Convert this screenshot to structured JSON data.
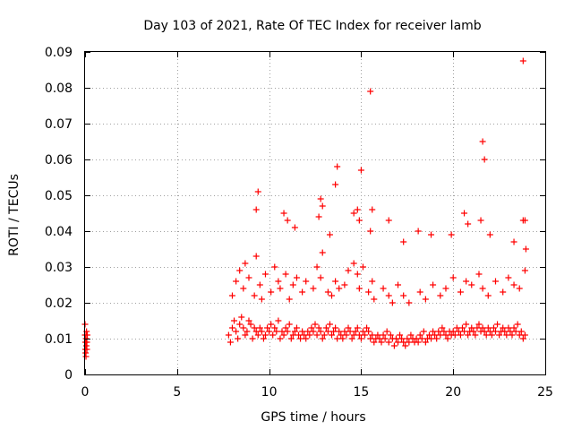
{
  "chart_data": {
    "type": "scatter",
    "title": "Day 103 of 2021, Rate Of TEC Index for receiver lamb",
    "xlabel": "GPS time / hours",
    "ylabel": "ROTI / TECUs",
    "xlim": [
      0,
      25
    ],
    "ylim": [
      0,
      0.09
    ],
    "x_ticks": [
      0,
      5,
      10,
      15,
      20,
      25
    ],
    "x_tick_labels": [
      "0",
      "5",
      "10",
      "15",
      "20",
      "25"
    ],
    "y_ticks": [
      0,
      0.01,
      0.02,
      0.03,
      0.04,
      0.05,
      0.06,
      0.07,
      0.08,
      0.09
    ],
    "y_tick_labels": [
      "0",
      "0.01",
      "0.02",
      "0.03",
      "0.04",
      "0.05",
      "0.06",
      "0.07",
      "0.08",
      "0.09"
    ],
    "grid": true,
    "marker": "+",
    "series": [
      {
        "name": "ROTI",
        "color": "#ff0000",
        "x": [
          0.0,
          0.0,
          0.02,
          0.02,
          0.03,
          0.05,
          0.05,
          0.07,
          0.08,
          0.1,
          0.1,
          0.12,
          7.8,
          7.9,
          8.0,
          8.1,
          8.2,
          8.3,
          8.4,
          8.5,
          8.6,
          8.7,
          8.8,
          8.9,
          9.0,
          9.1,
          9.2,
          9.3,
          9.4,
          9.5,
          9.6,
          9.7,
          9.8,
          9.9,
          10.0,
          10.1,
          10.2,
          10.3,
          10.4,
          10.5,
          10.6,
          10.7,
          10.8,
          10.9,
          11.0,
          11.1,
          11.2,
          11.3,
          11.4,
          11.5,
          11.6,
          11.7,
          11.8,
          11.9,
          12.0,
          12.1,
          12.2,
          12.3,
          12.4,
          12.5,
          12.6,
          12.7,
          12.8,
          12.9,
          13.0,
          13.1,
          13.2,
          13.3,
          13.4,
          13.5,
          13.6,
          13.7,
          13.8,
          13.9,
          14.0,
          14.1,
          14.2,
          14.3,
          14.4,
          14.5,
          14.6,
          14.7,
          14.8,
          14.9,
          15.0,
          15.1,
          15.2,
          15.3,
          15.4,
          15.5,
          15.6,
          15.7,
          15.8,
          15.9,
          16.0,
          16.1,
          16.2,
          16.3,
          16.4,
          16.5,
          16.6,
          16.7,
          16.8,
          16.9,
          17.0,
          17.1,
          17.2,
          17.3,
          17.4,
          17.5,
          17.6,
          17.7,
          17.8,
          17.9,
          18.0,
          18.1,
          18.2,
          18.3,
          18.4,
          18.5,
          18.6,
          18.7,
          18.8,
          18.9,
          19.0,
          19.1,
          19.2,
          19.3,
          19.4,
          19.5,
          19.6,
          19.7,
          19.8,
          19.9,
          20.0,
          20.1,
          20.2,
          20.3,
          20.4,
          20.5,
          20.6,
          20.7,
          20.8,
          20.9,
          21.0,
          21.1,
          21.2,
          21.3,
          21.4,
          21.5,
          21.6,
          21.7,
          21.8,
          21.9,
          22.0,
          22.1,
          22.2,
          22.3,
          22.4,
          22.5,
          22.6,
          22.7,
          22.8,
          22.9,
          23.0,
          23.1,
          23.2,
          23.3,
          23.4,
          23.5,
          23.6,
          23.7,
          23.8,
          23.9,
          8.0,
          8.2,
          8.4,
          8.6,
          8.7,
          8.9,
          9.2,
          9.3,
          9.5,
          9.6,
          9.8,
          10.1,
          10.3,
          10.5,
          10.6,
          10.9,
          11.1,
          11.3,
          11.5,
          11.8,
          12.0,
          12.4,
          12.6,
          12.8,
          12.9,
          13.2,
          13.4,
          13.6,
          13.8,
          14.1,
          14.3,
          14.6,
          14.8,
          14.9,
          15.1,
          15.4,
          15.6,
          15.7,
          16.2,
          16.5,
          16.7,
          17.0,
          17.3,
          17.6,
          18.2,
          18.5,
          18.9,
          19.3,
          19.6,
          20.0,
          20.4,
          20.7,
          21.0,
          21.4,
          21.6,
          21.9,
          22.3,
          22.7,
          23.0,
          23.3,
          23.6,
          23.9,
          9.3,
          9.4,
          10.8,
          11.0,
          11.4,
          12.7,
          12.8,
          12.9,
          13.3,
          13.6,
          13.7,
          14.6,
          14.8,
          14.9,
          15.0,
          15.5,
          15.6,
          16.5,
          17.3,
          18.1,
          18.8,
          19.9,
          20.6,
          20.8,
          21.5,
          21.6,
          21.7,
          22.0,
          23.3,
          23.8,
          23.9,
          23.95,
          15.5,
          23.8
        ],
        "y": [
          0.014,
          0.011,
          0.009,
          0.007,
          0.006,
          0.005,
          0.01,
          0.008,
          0.012,
          0.007,
          0.009,
          0.011,
          0.011,
          0.009,
          0.013,
          0.015,
          0.012,
          0.01,
          0.014,
          0.016,
          0.013,
          0.011,
          0.012,
          0.015,
          0.014,
          0.01,
          0.013,
          0.012,
          0.011,
          0.013,
          0.012,
          0.01,
          0.011,
          0.013,
          0.012,
          0.014,
          0.011,
          0.013,
          0.012,
          0.015,
          0.01,
          0.012,
          0.011,
          0.013,
          0.012,
          0.014,
          0.01,
          0.011,
          0.012,
          0.013,
          0.011,
          0.01,
          0.012,
          0.011,
          0.01,
          0.012,
          0.011,
          0.013,
          0.012,
          0.014,
          0.011,
          0.013,
          0.012,
          0.01,
          0.011,
          0.013,
          0.012,
          0.014,
          0.011,
          0.012,
          0.013,
          0.01,
          0.012,
          0.011,
          0.01,
          0.012,
          0.011,
          0.013,
          0.012,
          0.01,
          0.011,
          0.012,
          0.013,
          0.011,
          0.01,
          0.012,
          0.011,
          0.013,
          0.012,
          0.01,
          0.011,
          0.009,
          0.01,
          0.011,
          0.01,
          0.009,
          0.011,
          0.01,
          0.012,
          0.009,
          0.011,
          0.01,
          0.008,
          0.01,
          0.009,
          0.011,
          0.01,
          0.009,
          0.008,
          0.01,
          0.009,
          0.011,
          0.01,
          0.009,
          0.01,
          0.009,
          0.011,
          0.01,
          0.012,
          0.009,
          0.01,
          0.011,
          0.01,
          0.012,
          0.011,
          0.01,
          0.012,
          0.011,
          0.013,
          0.012,
          0.011,
          0.01,
          0.012,
          0.011,
          0.012,
          0.011,
          0.013,
          0.012,
          0.011,
          0.013,
          0.012,
          0.014,
          0.011,
          0.012,
          0.013,
          0.012,
          0.011,
          0.013,
          0.014,
          0.012,
          0.013,
          0.012,
          0.011,
          0.013,
          0.012,
          0.011,
          0.013,
          0.012,
          0.014,
          0.011,
          0.012,
          0.013,
          0.012,
          0.011,
          0.013,
          0.012,
          0.011,
          0.013,
          0.012,
          0.014,
          0.011,
          0.012,
          0.01,
          0.011,
          0.022,
          0.026,
          0.029,
          0.024,
          0.031,
          0.027,
          0.022,
          0.033,
          0.025,
          0.021,
          0.028,
          0.023,
          0.03,
          0.026,
          0.024,
          0.028,
          0.021,
          0.025,
          0.027,
          0.023,
          0.026,
          0.024,
          0.03,
          0.027,
          0.034,
          0.023,
          0.022,
          0.026,
          0.024,
          0.025,
          0.029,
          0.031,
          0.028,
          0.024,
          0.03,
          0.023,
          0.026,
          0.021,
          0.024,
          0.022,
          0.02,
          0.025,
          0.022,
          0.02,
          0.023,
          0.021,
          0.025,
          0.022,
          0.024,
          0.027,
          0.023,
          0.026,
          0.025,
          0.028,
          0.024,
          0.022,
          0.026,
          0.023,
          0.027,
          0.025,
          0.024,
          0.029,
          0.046,
          0.051,
          0.045,
          0.043,
          0.041,
          0.044,
          0.049,
          0.047,
          0.039,
          0.053,
          0.058,
          0.045,
          0.046,
          0.043,
          0.057,
          0.04,
          0.046,
          0.043,
          0.037,
          0.04,
          0.039,
          0.039,
          0.045,
          0.042,
          0.043,
          0.065,
          0.06,
          0.039,
          0.037,
          0.043,
          0.043,
          0.035,
          0.079,
          0.0875
        ]
      }
    ]
  }
}
